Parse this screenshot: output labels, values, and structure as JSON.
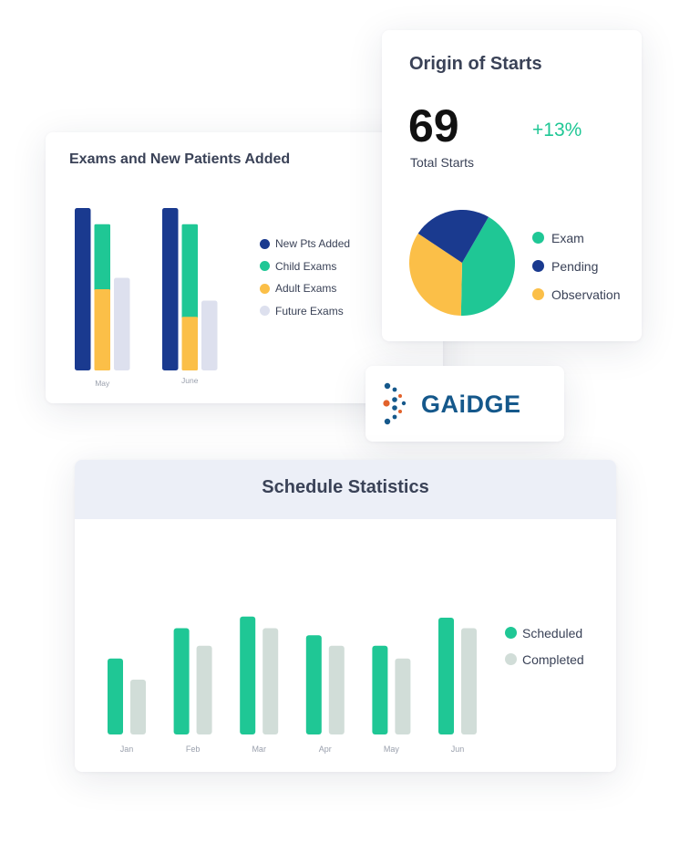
{
  "exams_card": {
    "legend": [
      {
        "label": "New Pts Added",
        "color": "#1a3a8f"
      },
      {
        "label": "Child Exams",
        "color": "#1fc795"
      },
      {
        "label": "Adult Exams",
        "color": "#fbbf48"
      },
      {
        "label": "Future Exams",
        "color": "#dde0ee"
      }
    ]
  },
  "origin_card": {
    "total_value": "69",
    "total_label": "Total Starts",
    "growth": "+13%",
    "legend": [
      {
        "label": "Exam",
        "color": "#1fc795"
      },
      {
        "label": "Pending",
        "color": "#1a3a8f"
      },
      {
        "label": "Observation",
        "color": "#fbbf48"
      }
    ]
  },
  "logo": {
    "text": "GAiDGE",
    "color": "#15588b"
  },
  "schedule_card": {
    "legend": [
      {
        "label": "Scheduled",
        "color": "#1fc795"
      },
      {
        "label": "Completed",
        "color": "#d1ddd8"
      }
    ]
  },
  "chart_data": [
    {
      "type": "bar",
      "title": "Exams and New Patients Added",
      "categories": [
        "May",
        "June"
      ],
      "series": [
        {
          "name": "New Pts Added",
          "color": "#1a3a8f",
          "values": [
            100,
            100
          ]
        },
        {
          "name": "Child Exams",
          "color": "#1fc795",
          "values": [
            40,
            57
          ]
        },
        {
          "name": "Adult Exams",
          "color": "#fbbf48",
          "values": [
            50,
            33
          ]
        },
        {
          "name": "Future Exams",
          "color": "#dde0ee",
          "values": [
            57,
            43
          ]
        }
      ],
      "stacked_series": [
        "Adult Exams",
        "Child Exams"
      ],
      "ylim": [
        0,
        100
      ],
      "grid": false,
      "legend_position": "right"
    },
    {
      "type": "pie",
      "title": "Origin of Starts",
      "series": [
        {
          "name": "Exam",
          "color": "#1fc795",
          "value": 42
        },
        {
          "name": "Observation",
          "color": "#fbbf48",
          "value": 34
        },
        {
          "name": "Pending",
          "color": "#1a3a8f",
          "value": 24
        }
      ],
      "legend_position": "right"
    },
    {
      "type": "bar",
      "title": "Schedule Statistics",
      "categories": [
        "Jan",
        "Feb",
        "Mar",
        "Apr",
        "May",
        "Jun"
      ],
      "series": [
        {
          "name": "Scheduled",
          "color": "#1fc795",
          "values": [
            65,
            91,
            101,
            85,
            76,
            100
          ]
        },
        {
          "name": "Completed",
          "color": "#d1ddd8",
          "values": [
            47,
            76,
            91,
            76,
            65,
            91
          ]
        }
      ],
      "ylim": [
        0,
        100
      ],
      "grid": false,
      "legend_position": "right"
    }
  ]
}
